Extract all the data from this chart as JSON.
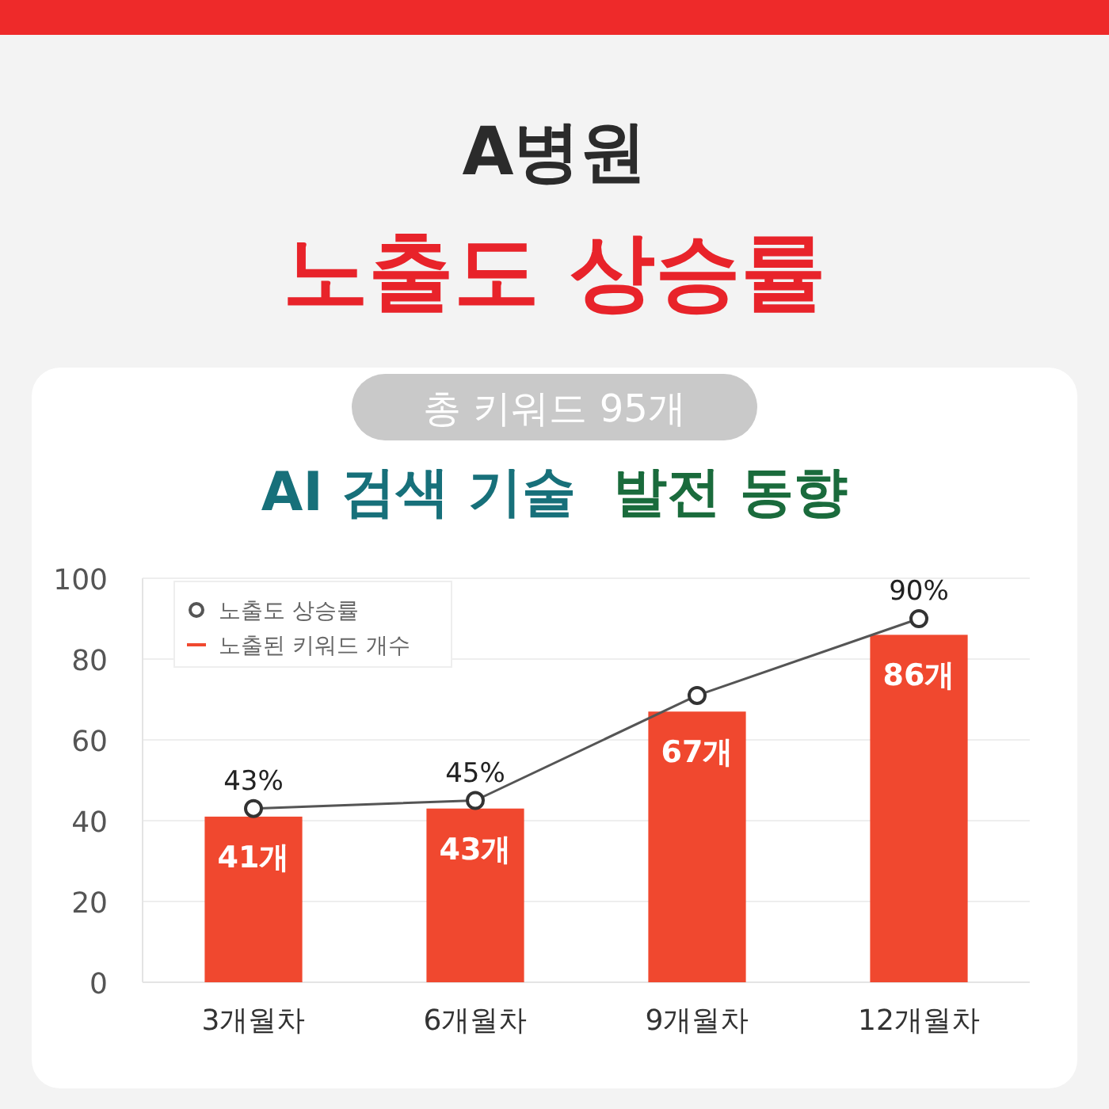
{
  "chart_data": {
    "type": "bar",
    "title": "A병원",
    "subtitle": "노출도 상승률",
    "annotations": [
      "총 키워드 95개",
      "AI 검색 기술",
      "발전 동향"
    ],
    "categories": [
      "3개월차",
      "6개월차",
      "9개월차",
      "12개월차"
    ],
    "series": [
      {
        "name": "노출된 키워드 개수",
        "color": "#f0482f",
        "values": [
          41,
          43,
          67,
          86
        ],
        "value_labels": [
          "41개",
          "43개",
          "67개",
          "86개"
        ]
      },
      {
        "type": "line",
        "name": "노출도 상승률",
        "color": "#555555",
        "marker": "circle",
        "values": [
          43,
          45,
          71,
          90
        ],
        "value_labels": [
          "43%",
          "45%",
          null,
          "90%"
        ]
      }
    ],
    "ylim": [
      0,
      100
    ],
    "yticks": [
      0,
      20,
      40,
      60,
      80,
      100
    ],
    "grid": "y",
    "legend": "top left"
  }
}
